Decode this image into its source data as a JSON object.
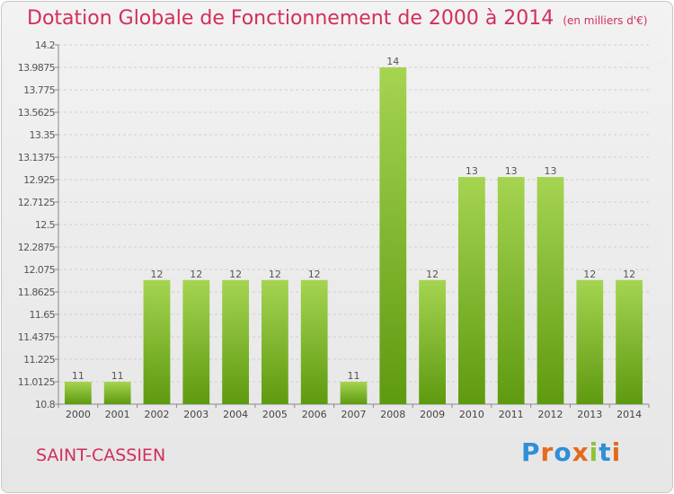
{
  "header": {
    "title": "Dotation Globale de Fonctionnement de 2000 à 2014",
    "subtitle": "(en milliers d'€)"
  },
  "footer": {
    "city": "SAINT-CASSIEN",
    "logo": "Proxiti"
  },
  "colors": {
    "title": "#d12f5b",
    "bar_top": "#a5d451",
    "bar_bottom": "#5e9a10"
  },
  "chart_data": {
    "type": "bar",
    "title": "Dotation Globale de Fonctionnement de 2000 à 2014",
    "subtitle": "(en milliers d'€)",
    "xlabel": "",
    "ylabel": "",
    "categories": [
      "2000",
      "2001",
      "2002",
      "2003",
      "2004",
      "2005",
      "2006",
      "2007",
      "2008",
      "2009",
      "2010",
      "2011",
      "2012",
      "2013",
      "2014"
    ],
    "values": [
      11,
      11,
      12,
      12,
      12,
      12,
      12,
      11,
      14,
      12,
      13,
      13,
      13,
      12,
      12
    ],
    "plotted_values": [
      11.0125,
      11.0125,
      11.975,
      11.975,
      11.975,
      11.975,
      11.975,
      11.0125,
      13.9875,
      11.975,
      12.95,
      12.95,
      12.95,
      11.975,
      11.975
    ],
    "data_labels": [
      "11",
      "11",
      "12",
      "12",
      "12",
      "12",
      "12",
      "11",
      "14",
      "12",
      "13",
      "13",
      "13",
      "12",
      "12"
    ],
    "ylim": [
      10.8,
      14.2
    ],
    "yticks": [
      "10.8",
      "11.0125",
      "11.225",
      "11.4375",
      "11.65",
      "11.8625",
      "12.075",
      "12.2875",
      "12.5",
      "12.7125",
      "12.925",
      "13.1375",
      "13.35",
      "13.5625",
      "13.775",
      "13.9875",
      "14.2"
    ],
    "ytick_values": [
      10.8,
      11.0125,
      11.225,
      11.4375,
      11.65,
      11.8625,
      12.075,
      12.2875,
      12.5,
      12.7125,
      12.925,
      13.1375,
      13.35,
      13.5625,
      13.775,
      13.9875,
      14.2
    ],
    "grid": true,
    "legend": "none"
  }
}
